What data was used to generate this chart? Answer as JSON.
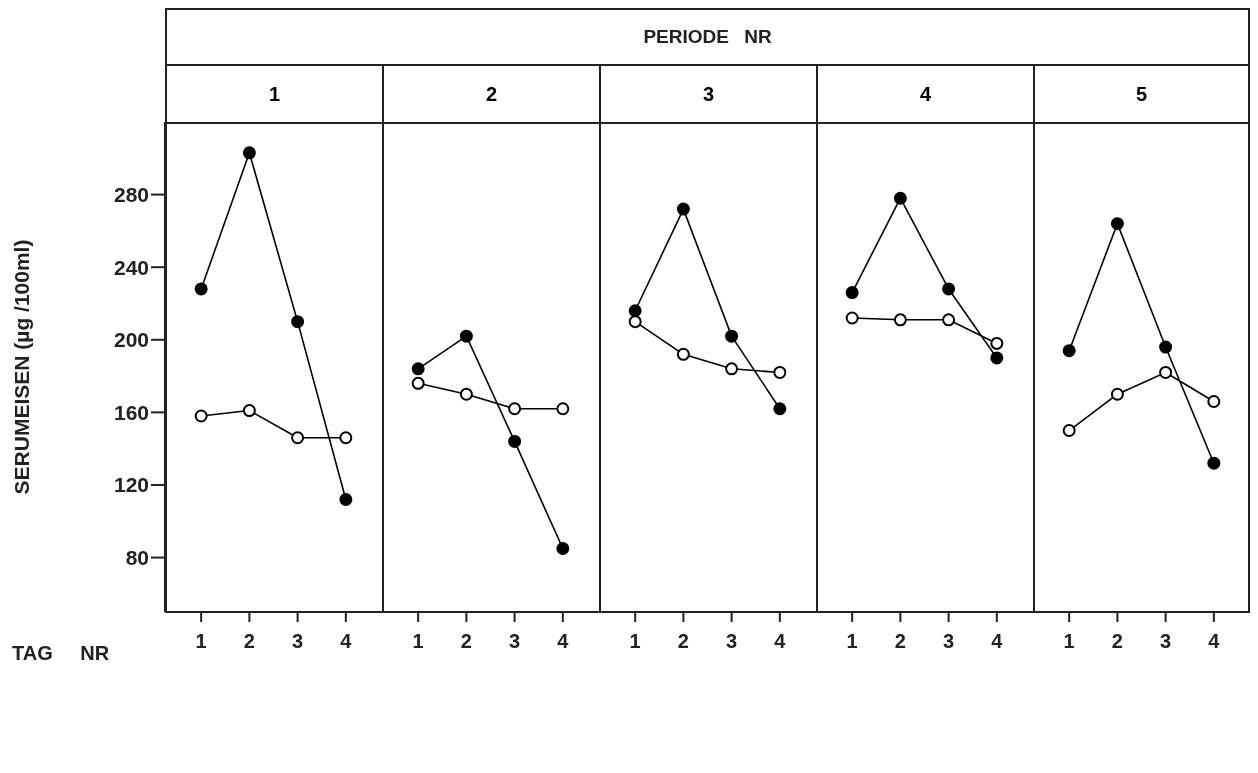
{
  "chart_data": [
    {
      "type": "line",
      "title": "1",
      "annotations": [
        "PERIODE NR"
      ],
      "xlabel": "TAG NR",
      "ylabel": "SERUMEISEN  (µg /100ml)",
      "categories": [
        "1",
        "2",
        "3",
        "4"
      ],
      "marker": "circle",
      "ylim": [
        50,
        320
      ],
      "yticks": [
        80,
        120,
        160,
        200,
        240,
        280
      ],
      "series": [
        {
          "color": "#000000",
          "values": [
            228,
            303,
            210,
            112
          ]
        },
        {
          "color": "#000000",
          "values": [
            158,
            161,
            146,
            146
          ]
        }
      ]
    },
    {
      "type": "line",
      "title": "2",
      "categories": [
        "1",
        "2",
        "3",
        "4"
      ],
      "marker": "circle",
      "ylim": [
        50,
        320
      ],
      "tick_labels": "x",
      "series": [
        {
          "color": "#000000",
          "values": [
            184,
            202,
            144,
            85
          ]
        },
        {
          "color": "#000000",
          "values": [
            176,
            170,
            162,
            162
          ]
        }
      ]
    },
    {
      "type": "line",
      "title": "3",
      "categories": [
        "1",
        "2",
        "3",
        "4"
      ],
      "marker": "circle",
      "ylim": [
        50,
        320
      ],
      "tick_labels": "x",
      "series": [
        {
          "color": "#000000",
          "values": [
            216,
            272,
            202,
            162
          ]
        },
        {
          "color": "#000000",
          "values": [
            210,
            192,
            184,
            182
          ]
        }
      ]
    },
    {
      "type": "line",
      "title": "4",
      "categories": [
        "1",
        "2",
        "3",
        "4"
      ],
      "marker": "circle",
      "ylim": [
        50,
        320
      ],
      "tick_labels": "x",
      "series": [
        {
          "color": "#000000",
          "values": [
            226,
            278,
            228,
            190
          ]
        },
        {
          "color": "#000000",
          "values": [
            212,
            211,
            211,
            198
          ]
        }
      ]
    },
    {
      "type": "line",
      "title": "5",
      "categories": [
        "1",
        "2",
        "3",
        "4"
      ],
      "marker": "circle",
      "ylim": [
        50,
        320
      ],
      "tick_labels": "x",
      "series": [
        {
          "color": "#000000",
          "values": [
            194,
            264,
            196,
            132
          ]
        },
        {
          "color": "#000000",
          "values": [
            150,
            170,
            182,
            166
          ]
        }
      ]
    }
  ]
}
